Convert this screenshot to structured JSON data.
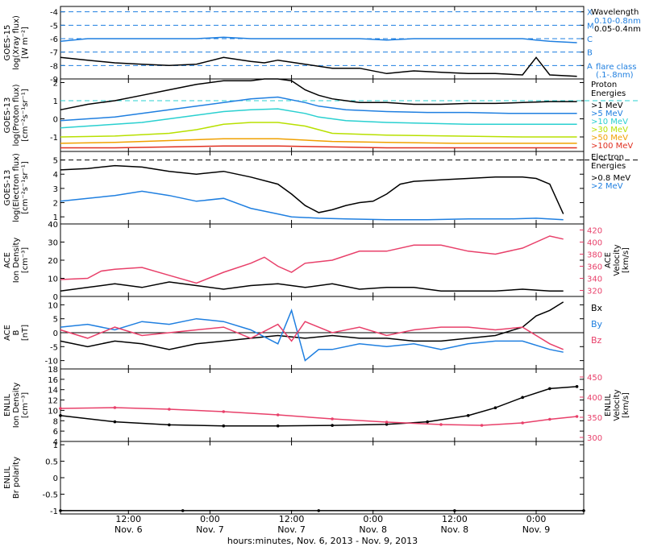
{
  "figure": {
    "xlabel": "hours:minutes, Nov.  6, 2013 - Nov.  9, 2013",
    "x_ticks": [
      {
        "label": "12:00",
        "day": "Nov. 6",
        "hours": 12
      },
      {
        "label": "0:00",
        "day": "Nov. 7",
        "hours": 24
      },
      {
        "label": "12:00",
        "day": "Nov. 7",
        "hours": 36
      },
      {
        "label": "0:00",
        "day": "Nov. 8",
        "hours": 48
      },
      {
        "label": "12:00",
        "day": "Nov. 8",
        "hours": 60
      },
      {
        "label": "0:00",
        "day": "Nov. 9",
        "hours": 72
      }
    ],
    "x_range_hours": [
      2,
      79
    ]
  },
  "chart_data": [
    {
      "type": "line",
      "panel": "goes15-xray",
      "ylabel": [
        "GOES-15",
        "log(Xray flux)",
        "[W m⁻²]"
      ],
      "ylim": [
        -9,
        -3.6
      ],
      "yticks": [
        -9,
        -8,
        -7,
        -6,
        -5,
        -4
      ],
      "flare_levels": [
        {
          "label": "X",
          "value": -4
        },
        {
          "label": "M",
          "value": -5
        },
        {
          "label": "C",
          "value": -6
        },
        {
          "label": "B",
          "value": -7
        },
        {
          "label": "A",
          "value": -8
        }
      ],
      "legend": {
        "title": "Wavelength",
        "entries": [
          {
            "label": "0.10-0.8nm",
            "color": "#1f7fe0"
          },
          {
            "label": "0.05-0.4nm",
            "color": "#000000"
          }
        ],
        "note": [
          "flare class",
          "(.1-.8nm)"
        ]
      },
      "series": [
        {
          "name": "0.10-0.8nm",
          "color": "#1f7fe0",
          "x": [
            2,
            6,
            10,
            14,
            18,
            22,
            26,
            30,
            32,
            34,
            38,
            42,
            46,
            50,
            54,
            58,
            62,
            66,
            70,
            72,
            74,
            78
          ],
          "y": [
            -6.2,
            -6.0,
            -6.0,
            -6.0,
            -6.0,
            -6.0,
            -5.9,
            -6.0,
            -6.0,
            -6.0,
            -6.0,
            -6.0,
            -6.0,
            -6.1,
            -6.0,
            -6.0,
            -6.0,
            -6.0,
            -6.0,
            -6.1,
            -6.2,
            -6.3
          ]
        },
        {
          "name": "0.05-0.4nm",
          "color": "#000000",
          "x": [
            2,
            6,
            10,
            14,
            18,
            22,
            26,
            30,
            32,
            34,
            38,
            42,
            46,
            50,
            54,
            58,
            62,
            66,
            70,
            72,
            74,
            78
          ],
          "y": [
            -7.4,
            -7.6,
            -7.8,
            -7.9,
            -8.0,
            -7.9,
            -7.4,
            -7.7,
            -7.8,
            -7.6,
            -7.9,
            -8.2,
            -8.2,
            -8.6,
            -8.4,
            -8.5,
            -8.6,
            -8.6,
            -8.7,
            -7.4,
            -8.7,
            -8.8
          ]
        }
      ]
    },
    {
      "type": "line",
      "panel": "goes13-proton",
      "ylabel": [
        "GOES-13",
        "log(Proton flux)",
        "[cm⁻²s⁻¹sr⁻¹]"
      ],
      "ylim": [
        -1.8,
        2.2
      ],
      "yticks": [
        -1,
        0,
        1,
        2
      ],
      "reference_level": 1,
      "legend": {
        "title": [
          "Proton",
          "Energies"
        ]
      },
      "series": [
        {
          "name": ">1 MeV",
          "color": "#000000",
          "x": [
            2,
            6,
            10,
            14,
            18,
            22,
            26,
            30,
            32,
            34,
            36,
            38,
            40,
            42,
            44,
            46,
            50,
            54,
            58,
            62,
            66,
            70,
            74,
            78
          ],
          "y": [
            0.5,
            0.8,
            1.0,
            1.3,
            1.6,
            1.9,
            2.1,
            2.1,
            2.3,
            2.2,
            2.1,
            1.6,
            1.3,
            1.1,
            1.0,
            0.9,
            0.9,
            0.8,
            0.8,
            0.85,
            0.85,
            0.9,
            0.95,
            0.95
          ]
        },
        {
          "name": ">5 MeV",
          "color": "#1f7fe0",
          "x": [
            2,
            6,
            10,
            14,
            18,
            22,
            26,
            30,
            34,
            38,
            40,
            44,
            50,
            56,
            62,
            68,
            74,
            78
          ],
          "y": [
            -0.1,
            0.0,
            0.1,
            0.3,
            0.5,
            0.7,
            0.9,
            1.1,
            1.2,
            0.9,
            0.7,
            0.5,
            0.4,
            0.35,
            0.35,
            0.3,
            0.3,
            0.3
          ]
        },
        {
          "name": ">10 MeV",
          "color": "#2ad0d0",
          "x": [
            2,
            6,
            10,
            14,
            18,
            22,
            26,
            30,
            34,
            38,
            40,
            44,
            50,
            56,
            62,
            68,
            74,
            78
          ],
          "y": [
            -0.5,
            -0.4,
            -0.3,
            -0.2,
            0.0,
            0.2,
            0.4,
            0.5,
            0.55,
            0.3,
            0.1,
            -0.1,
            -0.2,
            -0.25,
            -0.3,
            -0.3,
            -0.3,
            -0.3
          ]
        },
        {
          "name": ">30 MeV",
          "color": "#b8e000",
          "x": [
            2,
            10,
            18,
            22,
            26,
            30,
            34,
            38,
            42,
            50,
            60,
            70,
            78
          ],
          "y": [
            -1.0,
            -0.95,
            -0.8,
            -0.6,
            -0.3,
            -0.2,
            -0.2,
            -0.4,
            -0.8,
            -0.9,
            -0.95,
            -1.0,
            -1.0
          ]
        },
        {
          "name": ">50 MeV",
          "color": "#f0a000",
          "x": [
            2,
            10,
            18,
            26,
            34,
            42,
            50,
            60,
            70,
            78
          ],
          "y": [
            -1.35,
            -1.3,
            -1.2,
            -1.1,
            -1.1,
            -1.25,
            -1.3,
            -1.35,
            -1.35,
            -1.35
          ]
        },
        {
          "name": ">100 MeV",
          "color": "#e03020",
          "x": [
            2,
            10,
            18,
            26,
            34,
            42,
            50,
            60,
            70,
            78
          ],
          "y": [
            -1.6,
            -1.6,
            -1.55,
            -1.5,
            -1.5,
            -1.55,
            -1.6,
            -1.6,
            -1.6,
            -1.6
          ]
        }
      ]
    },
    {
      "type": "line",
      "panel": "goes13-electron",
      "ylabel": [
        "GOES-13",
        "log(Electron flux)",
        "[cm⁻²s⁻¹sr⁻¹]"
      ],
      "ylim": [
        0.5,
        5.6
      ],
      "yticks": [
        1,
        2,
        3,
        4,
        5
      ],
      "reference_level": 5,
      "legend": {
        "title": [
          "Electron",
          "Energies"
        ]
      },
      "series": [
        {
          "name": ">0.8 MeV",
          "color": "#000000",
          "x": [
            2,
            6,
            10,
            14,
            18,
            22,
            26,
            30,
            34,
            36,
            38,
            40,
            42,
            44,
            46,
            48,
            50,
            52,
            54,
            58,
            62,
            66,
            70,
            72,
            74,
            76
          ],
          "y": [
            4.3,
            4.4,
            4.6,
            4.5,
            4.2,
            4.0,
            4.2,
            3.8,
            3.3,
            2.6,
            1.8,
            1.3,
            1.5,
            1.8,
            2.0,
            2.1,
            2.6,
            3.3,
            3.5,
            3.6,
            3.7,
            3.8,
            3.8,
            3.7,
            3.3,
            1.2
          ]
        },
        {
          "name": ">2 MeV",
          "color": "#1f7fe0",
          "x": [
            2,
            6,
            10,
            14,
            18,
            22,
            26,
            30,
            34,
            36,
            40,
            44,
            50,
            56,
            62,
            68,
            72,
            76
          ],
          "y": [
            2.1,
            2.3,
            2.5,
            2.8,
            2.5,
            2.1,
            2.3,
            1.6,
            1.2,
            1.0,
            0.9,
            0.85,
            0.8,
            0.8,
            0.85,
            0.85,
            0.9,
            0.8
          ]
        }
      ]
    },
    {
      "type": "line",
      "panel": "ace-plasma",
      "ylabel": [
        "ACE",
        "Ion Density",
        "[cm⁻³]"
      ],
      "ylim": [
        0,
        40
      ],
      "yticks": [
        0,
        10,
        20,
        30,
        40
      ],
      "ylabel_right": [
        "ACE",
        "Velocity",
        "[km/s]"
      ],
      "ylim_right": [
        310,
        430
      ],
      "yticks_right": [
        320,
        340,
        360,
        380,
        400,
        420
      ],
      "series": [
        {
          "name": "Ion Density",
          "color": "#000000",
          "axis": "left",
          "x": [
            2,
            6,
            10,
            14,
            18,
            22,
            26,
            30,
            34,
            38,
            42,
            46,
            50,
            54,
            58,
            62,
            66,
            70,
            74,
            76
          ],
          "y": [
            3,
            5,
            7,
            5,
            8,
            6,
            4,
            6,
            7,
            5,
            7,
            4,
            5,
            5,
            3,
            3,
            3,
            4,
            3,
            3
          ]
        },
        {
          "name": "Velocity",
          "color": "#e8406a",
          "axis": "right",
          "x": [
            2,
            6,
            8,
            10,
            14,
            18,
            22,
            26,
            30,
            32,
            34,
            36,
            38,
            42,
            46,
            50,
            54,
            58,
            62,
            66,
            70,
            74,
            76
          ],
          "y": [
            338,
            340,
            352,
            355,
            358,
            345,
            332,
            350,
            365,
            375,
            360,
            350,
            365,
            370,
            385,
            385,
            395,
            395,
            385,
            380,
            390,
            410,
            405
          ]
        }
      ]
    },
    {
      "type": "line",
      "panel": "ace-mag",
      "ylabel": [
        "ACE",
        "B",
        "[nT]"
      ],
      "ylim": [
        -13,
        13
      ],
      "yticks": [
        -10,
        -5,
        0,
        5,
        10
      ],
      "legend": {
        "entries": [
          {
            "label": "Bx",
            "color": "#000000"
          },
          {
            "label": "By",
            "color": "#1f7fe0"
          },
          {
            "label": "Bz",
            "color": "#e8406a"
          }
        ]
      },
      "series": [
        {
          "name": "Bx",
          "color": "#000000",
          "x": [
            2,
            6,
            10,
            14,
            18,
            22,
            26,
            30,
            34,
            38,
            42,
            46,
            50,
            54,
            58,
            62,
            66,
            70,
            72,
            74,
            76
          ],
          "y": [
            -3,
            -5,
            -3,
            -4,
            -6,
            -4,
            -3,
            -2,
            -1,
            -2,
            -1,
            -2,
            -2,
            -3,
            -3,
            -2,
            -1,
            2,
            6,
            8,
            11
          ]
        },
        {
          "name": "By",
          "color": "#1f7fe0",
          "x": [
            2,
            6,
            10,
            14,
            18,
            22,
            26,
            30,
            34,
            36,
            38,
            40,
            42,
            46,
            50,
            54,
            58,
            62,
            66,
            70,
            74,
            76
          ],
          "y": [
            2,
            3,
            1,
            4,
            3,
            5,
            4,
            1,
            -4,
            8,
            -10,
            -6,
            -6,
            -4,
            -5,
            -4,
            -6,
            -4,
            -3,
            -3,
            -6,
            -7
          ]
        },
        {
          "name": "Bz",
          "color": "#e8406a",
          "x": [
            2,
            6,
            10,
            14,
            18,
            22,
            26,
            30,
            34,
            36,
            38,
            42,
            46,
            50,
            54,
            58,
            62,
            66,
            70,
            74,
            76
          ],
          "y": [
            1,
            -2,
            2,
            -1,
            0,
            1,
            2,
            -2,
            3,
            -3,
            4,
            0,
            2,
            -1,
            1,
            2,
            2,
            1,
            2,
            -4,
            -6
          ]
        }
      ]
    },
    {
      "type": "line",
      "panel": "enlil-plasma",
      "ylabel": [
        "ENLIL",
        "Ion Density",
        "[cm⁻³]"
      ],
      "ylim": [
        4,
        18
      ],
      "yticks": [
        4,
        6,
        8,
        10,
        12,
        14,
        16,
        18
      ],
      "ylabel_right": [
        "ENLIL",
        "Velocity",
        "[km/s]"
      ],
      "ylim_right": [
        290,
        470
      ],
      "yticks_right": [
        300,
        350,
        400,
        450
      ],
      "series": [
        {
          "name": "Ion Density",
          "color": "#000000",
          "axis": "left",
          "x": [
            2,
            10,
            18,
            26,
            34,
            42,
            50,
            56,
            62,
            66,
            70,
            74,
            78
          ],
          "y": [
            9.0,
            7.8,
            7.2,
            7.0,
            7.0,
            7.1,
            7.3,
            7.8,
            9.0,
            10.5,
            12.5,
            14.2,
            14.6
          ]
        },
        {
          "name": "Velocity",
          "color": "#e8406a",
          "axis": "right",
          "x": [
            2,
            10,
            18,
            26,
            34,
            42,
            50,
            58,
            64,
            70,
            74,
            78
          ],
          "y": [
            372,
            374,
            370,
            364,
            356,
            346,
            338,
            332,
            330,
            336,
            345,
            352
          ]
        }
      ]
    },
    {
      "type": "line",
      "panel": "enlil-polarity",
      "ylabel": [
        "ENLIL",
        "Br polarity"
      ],
      "ylim": [
        -1.1,
        1.1
      ],
      "yticks": [
        -1.0,
        -0.5,
        0.0,
        0.5,
        1.0
      ],
      "series": [
        {
          "name": "Br polarity",
          "color": "#000000",
          "x": [
            2,
            20,
            40,
            60,
            79
          ],
          "y": [
            -1,
            -1,
            -1,
            -1,
            -1
          ]
        }
      ]
    }
  ]
}
